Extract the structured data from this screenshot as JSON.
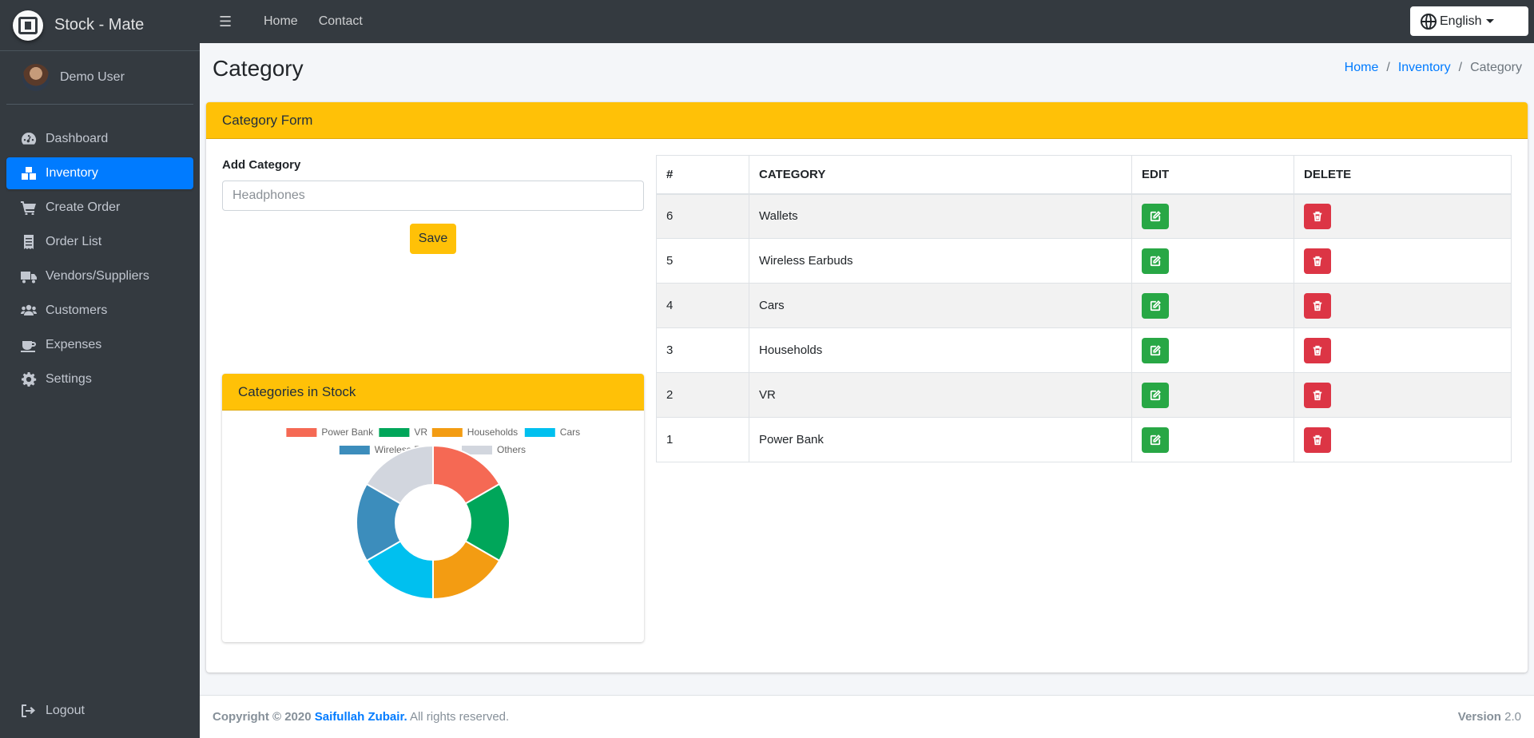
{
  "brand": {
    "name": "Stock - Mate"
  },
  "user": {
    "name": "Demo User"
  },
  "sidebar": {
    "items": [
      {
        "label": "Dashboard",
        "icon": "dashboard-icon"
      },
      {
        "label": "Inventory",
        "icon": "boxes-icon",
        "active": true
      },
      {
        "label": "Create Order",
        "icon": "cart-icon"
      },
      {
        "label": "Order List",
        "icon": "list-icon"
      },
      {
        "label": "Vendors/Suppliers",
        "icon": "truck-icon"
      },
      {
        "label": "Customers",
        "icon": "users-icon"
      },
      {
        "label": "Expenses",
        "icon": "coffee-icon"
      },
      {
        "label": "Settings",
        "icon": "gear-icon"
      }
    ],
    "logout": "Logout"
  },
  "topbar": {
    "links": [
      "Home",
      "Contact"
    ],
    "language": "English"
  },
  "header": {
    "title": "Category",
    "breadcrumb": [
      "Home",
      "Inventory",
      "Category"
    ]
  },
  "form_card": {
    "title": "Category Form",
    "label": "Add Category",
    "input_placeholder": "Headphones",
    "save_label": "Save"
  },
  "table": {
    "headers": [
      "#",
      "CATEGORY",
      "EDIT",
      "DELETE"
    ],
    "rows": [
      {
        "id": "6",
        "name": "Wallets"
      },
      {
        "id": "5",
        "name": "Wireless Earbuds"
      },
      {
        "id": "4",
        "name": "Cars"
      },
      {
        "id": "3",
        "name": "Households"
      },
      {
        "id": "2",
        "name": "VR"
      },
      {
        "id": "1",
        "name": "Power Bank"
      }
    ]
  },
  "chart_card": {
    "title": "Categories in Stock"
  },
  "chart_data": {
    "type": "pie",
    "categories": [
      "Power Bank",
      "VR",
      "Households",
      "Cars",
      "Wireless Earbuds",
      "Others"
    ],
    "values": [
      1,
      1,
      1,
      1,
      1,
      1
    ],
    "colors": [
      "#f56954",
      "#00a65a",
      "#f39c12",
      "#00c0ef",
      "#3c8dbc",
      "#d2d6de"
    ],
    "legend_position": "top"
  },
  "footer": {
    "copyright": "Copyright © 2020",
    "author": "Saifullah Zubair.",
    "rights": "All rights reserved.",
    "version_label": "Version",
    "version": "2.0"
  }
}
